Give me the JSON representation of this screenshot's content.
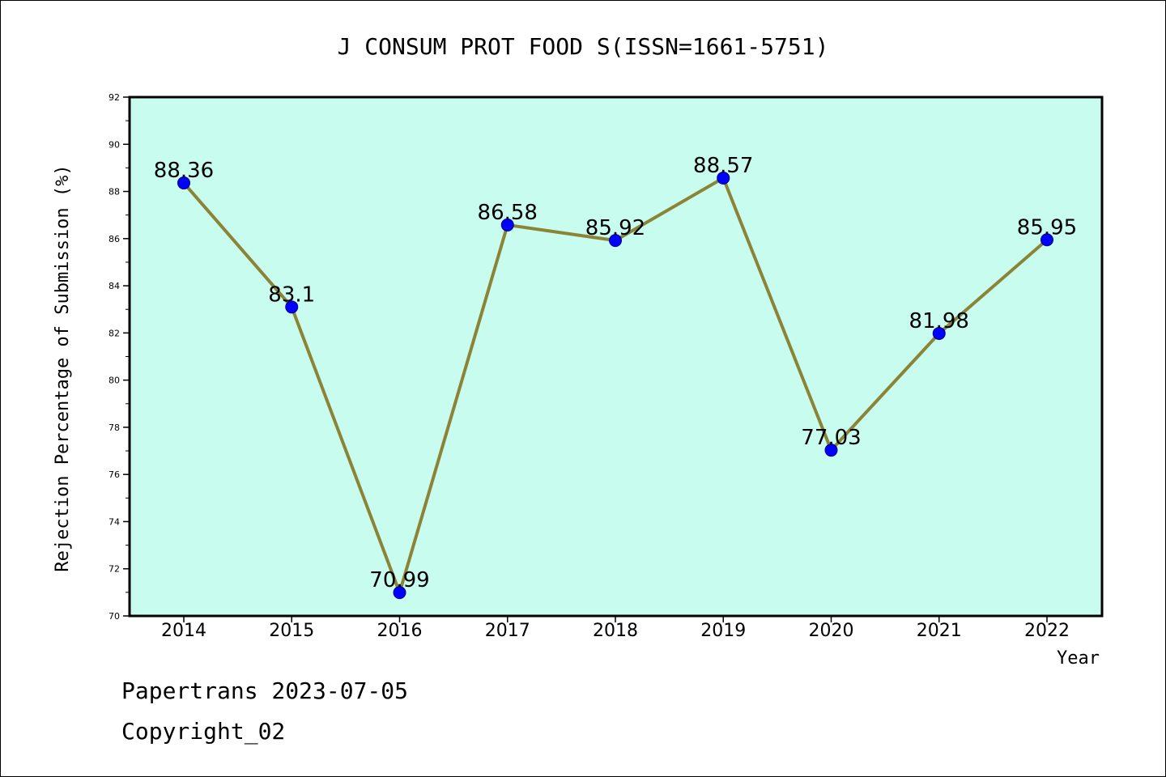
{
  "chart_data": {
    "type": "line",
    "title": "J CONSUM PROT FOOD S(ISSN=1661-5751)",
    "xlabel": "Year",
    "ylabel": "Rejection Percentage of Submission (%)",
    "categories": [
      "2014",
      "2015",
      "2016",
      "2017",
      "2018",
      "2019",
      "2020",
      "2021",
      "2022"
    ],
    "values": [
      88.36,
      83.1,
      70.99,
      86.58,
      85.92,
      88.57,
      77.03,
      81.98,
      85.95
    ],
    "data_labels": [
      "88.36",
      "83.1",
      "70.99",
      "86.58",
      "85.92",
      "88.57",
      "77.03",
      "81.98",
      "85.95"
    ],
    "ylim": [
      70,
      92
    ],
    "yticks": [
      "70",
      "72",
      "74",
      "76",
      "78",
      "80",
      "82",
      "84",
      "86",
      "88",
      "90",
      "92"
    ],
    "grid": false,
    "colors": {
      "plot_background": "#c8fcee",
      "line": "#8b8437",
      "marker": "#0000ff",
      "frame": "#000000"
    }
  },
  "footer": {
    "source": "Papertrans 2023-07-05",
    "copyright": "Copyright_02"
  }
}
